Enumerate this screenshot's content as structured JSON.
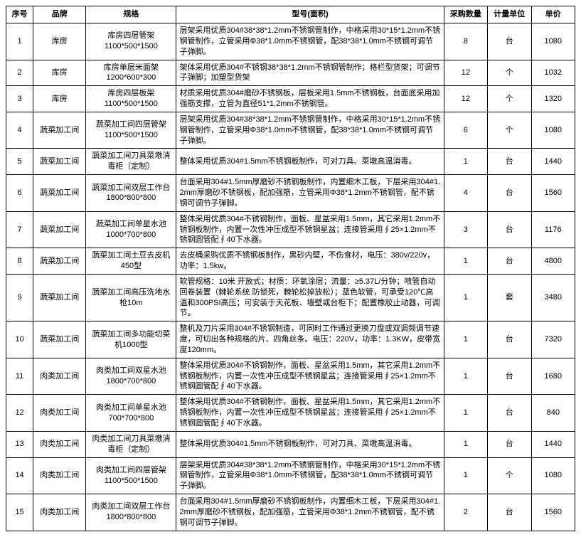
{
  "headers": {
    "seq": "序号",
    "brand": "品牌",
    "spec": "规格",
    "model": "型号(面积)",
    "qty": "采购数量",
    "unit": "计量单位",
    "price": "单价"
  },
  "rows": [
    {
      "seq": "1",
      "brand": "库房",
      "spec": "库房四层管架\n1100*500*1500",
      "model": "层架采用优质304#38*38*1.2mm不锈钢管制作，中格采用30*15*1.2mm不锈钢管制作，立管采用Φ38*1.0mm不锈钢管，配38*38*1.0mm不锈钢可调节子弹脚。",
      "qty": "8",
      "unit": "台",
      "price": "1080"
    },
    {
      "seq": "2",
      "brand": "库房",
      "spec": "库房单层米面架\n1200*600*300",
      "model": "架体采用优质304#不锈钢38*38*1.2mm不锈钢管制作；格栏型货架；可调节子弹脚；加塑型货架",
      "qty": "12",
      "unit": "个",
      "price": "1032"
    },
    {
      "seq": "3",
      "brand": "库房",
      "spec": "库房四层板架\n1100*500*1500",
      "model": "材质采用优质304#磨砂不锈钢板，层板采用1.5mm不锈钢板，台面底采用加强筋支撑，立管为直径51*1.2mm不锈钢管。",
      "qty": "12",
      "unit": "个",
      "price": "1320"
    },
    {
      "seq": "4",
      "brand": "蔬菜加工间",
      "spec": "蔬菜加工间四层管架\n1100*500*1500",
      "model": "层架采用优质304#38*38*1.2mm不锈钢管制作，中格采用30*15*1.2mm不锈钢管制作，立管采用Φ38*1.0mm不锈钢管，配38*38*1.0mm不锈钢可调节子弹脚。",
      "qty": "6",
      "unit": "个",
      "price": "1080"
    },
    {
      "seq": "5",
      "brand": "蔬菜加工间",
      "spec": "蔬菜加工间刀具菜墩消毒柜（定制）",
      "model": "整体采用优质304#1.5mm不锈钢板制作，可对刀具、菜墩高温消毒。",
      "qty": "1",
      "unit": "台",
      "price": "1440"
    },
    {
      "seq": "6",
      "brand": "蔬菜加工间",
      "spec": "蔬菜加工间双层工作台\n1800*800*800",
      "model": "台面采用304#1.5mm厚磨砂不锈钢板制作，内置细木工板，下层采用304#1.2mm厚磨砂不锈钢板，配加强筋，立管采用Φ38*1.2mm不锈钢管，配不锈钢可调节子弹脚。",
      "qty": "4",
      "unit": "台",
      "price": "1560"
    },
    {
      "seq": "7",
      "brand": "蔬菜加工间",
      "spec": "蔬菜加工间单星水池\n1000*700*800",
      "model": "整体采用优质304#不锈钢制作，面板、星盆采用1.5mm，其它采用1.2mm不锈钢板制作，内置一次性冲压成型不锈钢星盆；连接管采用∮25×1.2mm不锈钢圆管配∮40下水器。",
      "qty": "3",
      "unit": "台",
      "price": "1176"
    },
    {
      "seq": "8",
      "brand": "蔬菜加工间",
      "spec": "蔬菜加工间土豆去皮机\n450型",
      "model": "去皮桶采购优质不锈钢板制作，黑砂内壁，不伤食材，电压：380v/220v，功率：1.5kw。",
      "qty": "1",
      "unit": "台",
      "price": "4800"
    },
    {
      "seq": "9",
      "brand": "蔬菜加工间",
      "spec": "蔬菜加工间高压洗地水枪10m",
      "model": "软管规格：10米 开放式；材质：环氧涂层；流量：≥5.37L/分钟；喷管自动回卷装置（棘轮系统 防锁死，棘轮松掉放松）；蓝色软管，可承受120℃高温和300PSI高压；可安装于天花板、墙壁或台柜下；配置橡胶止动器，可调节。",
      "qty": "1",
      "unit": "套",
      "price": "3480"
    },
    {
      "seq": "10",
      "brand": "蔬菜加工间",
      "spec": "蔬菜加工间多功能切菜机1000型",
      "model": "整机及刀片采用304#不锈钢制造，可同时工作通过更换刀盘或双调频调节速度，可切出各种规格的片、四角丝条。电压：220V，功率：1.3KW，皮带宽度120mm。",
      "qty": "1",
      "unit": "台",
      "price": "7320"
    },
    {
      "seq": "11",
      "brand": "肉类加工间",
      "spec": "肉类加工间双星水池\n1800*700*800",
      "model": "整体采用优质304#不锈钢制作，面板、星盆采用1.5mm，其它采用1.2mm不锈钢板制作，内置一次性冲压成型不锈钢星盆；连接管采用∮25×1.2mm不锈钢圆管配∮40下水器。",
      "qty": "1",
      "unit": "台",
      "price": "1680"
    },
    {
      "seq": "12",
      "brand": "肉类加工间",
      "spec": "肉类加工间单星水池\n700*700*800",
      "model": "整体采用优质304#不锈钢制作，面板、星盆采用1.5mm，其它采用1.2mm不锈钢板制作，内置一次性冲压成型不锈钢星盆；连接管采用∮25×1.2mm不锈钢圆管配∮40下水器。",
      "qty": "1",
      "unit": "台",
      "price": "840"
    },
    {
      "seq": "13",
      "brand": "肉类加工间",
      "spec": "肉类加工间刀具菜墩消毒柜（定制）",
      "model": "整体采用优质304#1.5mm不锈钢板制作，可对刀具、菜墩高温消毒。",
      "qty": "1",
      "unit": "台",
      "price": "1440"
    },
    {
      "seq": "14",
      "brand": "肉类加工间",
      "spec": "肉类加工间四层管架\n1100*500*1500",
      "model": "层架采用优质304#38*38*1.2mm不锈钢管制作，中格采用30*15*1.2mm不锈钢管制作，立管采用Φ38*1.0mm不锈钢管，配38*38*1.0mm不锈钢可调节子弹脚。",
      "qty": "1",
      "unit": "个",
      "price": "1080"
    },
    {
      "seq": "15",
      "brand": "肉类加工间",
      "spec": "肉类加工间双层工作台\n1800*800*800",
      "model": "台面采用304#1.5mm厚磨砂不锈钢板制作，内置细木工板，下层采用304#1.2mm厚磨砂不锈钢板，配加强筋，立管采用Φ38*1.2mm不锈钢管，配不锈钢可调节子弹脚。",
      "qty": "2",
      "unit": "台",
      "price": "1560"
    }
  ]
}
